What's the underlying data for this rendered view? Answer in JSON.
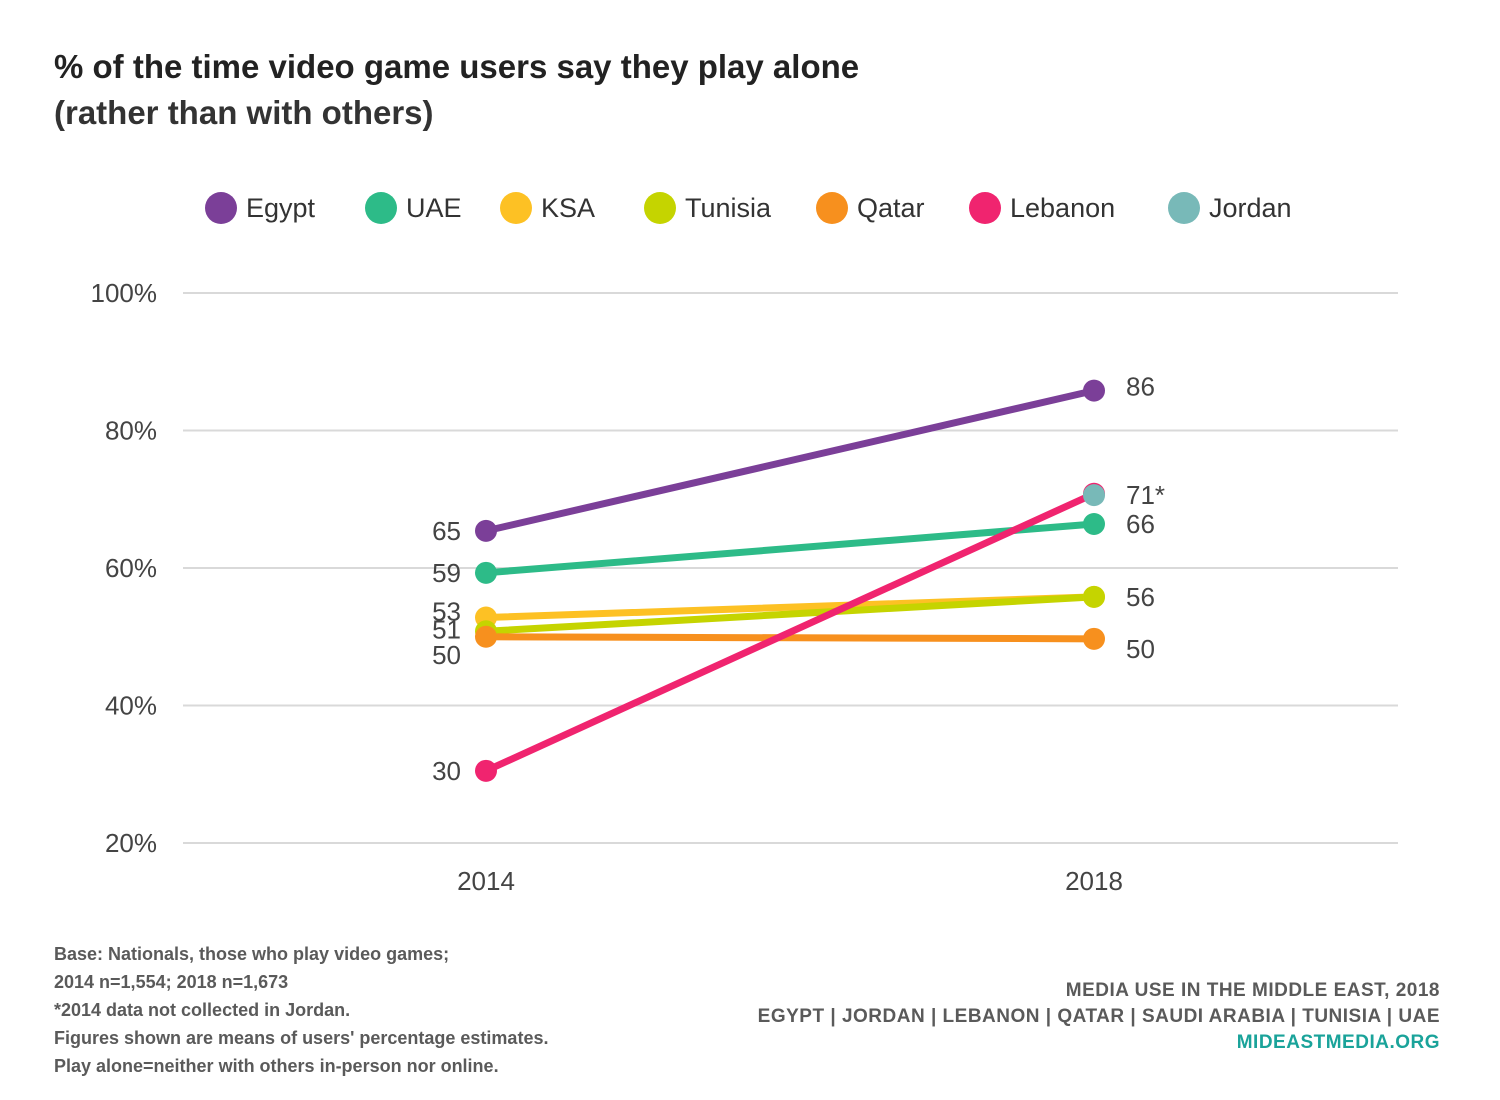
{
  "header": {
    "title": "% of the time video game users say they play alone",
    "subtitle": "(rather than with others)"
  },
  "chart_data": {
    "type": "line",
    "x": [
      "2014",
      "2018"
    ],
    "ylim": [
      20,
      100
    ],
    "yticks": [
      20,
      40,
      60,
      80,
      100
    ],
    "ytick_labels": [
      "20%",
      "40%",
      "60%",
      "80%",
      "100%"
    ],
    "grid": true,
    "legend_position": "top",
    "series": [
      {
        "name": "Egypt",
        "color": "#7b3f98",
        "values": [
          65.4,
          85.8
        ],
        "labels": [
          "65",
          "86"
        ]
      },
      {
        "name": "UAE",
        "color": "#2dbb88",
        "values": [
          59.3,
          66.4
        ],
        "labels": [
          "59",
          "66"
        ]
      },
      {
        "name": "KSA",
        "color": "#fdc124",
        "values": [
          52.8,
          55.8
        ],
        "labels": [
          "53",
          ""
        ]
      },
      {
        "name": "Tunisia",
        "color": "#c5d400",
        "values": [
          50.8,
          55.8
        ],
        "labels": [
          "51",
          "56"
        ]
      },
      {
        "name": "Qatar",
        "color": "#f7901e",
        "values": [
          50.0,
          49.7
        ],
        "labels": [
          "50",
          "50"
        ]
      },
      {
        "name": "Lebanon",
        "color": "#f0246f",
        "values": [
          30.5,
          70.8
        ],
        "labels": [
          "30",
          ""
        ]
      },
      {
        "name": "Jordan",
        "color": "#78b9b8",
        "values": [
          null,
          70.6
        ],
        "labels": [
          "",
          "71*"
        ]
      }
    ]
  },
  "footer": {
    "notes": [
      "Base: Nationals, those who play video games;",
      "2014 n=1,554; 2018 n=1,673",
      "*2014 data not collected in Jordan.",
      "Figures shown are means of users' percentage estimates.",
      "Play alone=neither with others in-person nor online."
    ],
    "source_line1": "MEDIA USE IN THE MIDDLE EAST, 2018",
    "source_line2": "EGYPT | JORDAN | LEBANON | QATAR | SAUDI ARABIA | TUNISIA | UAE",
    "source_site": "MIDEASTMEDIA.ORG"
  }
}
